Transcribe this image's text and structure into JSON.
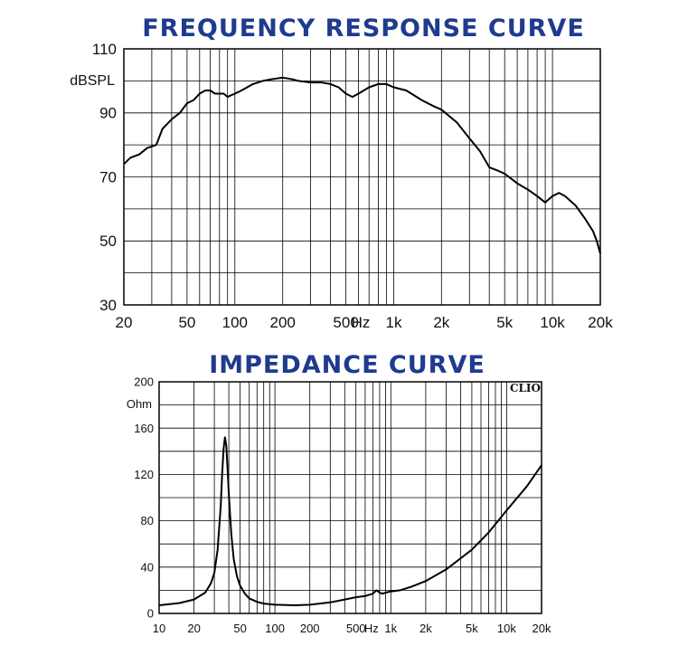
{
  "chart_data": [
    {
      "type": "line",
      "title": "FREQUENCY RESPONSE CURVE",
      "ylabel": "dBSPL",
      "xlabel": "",
      "x_scale": "log",
      "xlim": [
        20,
        20000
      ],
      "ylim": [
        30,
        110
      ],
      "y_ticks": [
        30,
        50,
        70,
        90,
        110
      ],
      "y_gridlines": [
        30,
        40,
        50,
        60,
        70,
        80,
        90,
        100,
        110
      ],
      "x_gridlines": [
        20,
        30,
        40,
        50,
        60,
        70,
        80,
        90,
        100,
        200,
        300,
        400,
        500,
        600,
        700,
        800,
        900,
        1000,
        2000,
        3000,
        4000,
        5000,
        6000,
        7000,
        8000,
        9000,
        10000,
        20000
      ],
      "x_tick_labels": [
        {
          "value": 20,
          "label": "20"
        },
        {
          "value": 50,
          "label": "50"
        },
        {
          "value": 100,
          "label": "100"
        },
        {
          "value": 200,
          "label": "200"
        },
        {
          "value": 500,
          "label": "500"
        },
        {
          "value": 620,
          "label": "Hz"
        },
        {
          "value": 1000,
          "label": "1k"
        },
        {
          "value": 2000,
          "label": "2k"
        },
        {
          "value": 5000,
          "label": "5k"
        },
        {
          "value": 10000,
          "label": "10k"
        },
        {
          "value": 20000,
          "label": "20k"
        }
      ],
      "grid": true,
      "series": [
        {
          "name": "",
          "x": [
            20,
            22,
            25,
            28,
            32,
            35,
            40,
            45,
            50,
            55,
            60,
            65,
            70,
            75,
            80,
            85,
            90,
            100,
            110,
            130,
            150,
            170,
            200,
            230,
            250,
            300,
            350,
            400,
            450,
            500,
            550,
            600,
            700,
            800,
            900,
            1000,
            1200,
            1500,
            1800,
            2000,
            2500,
            3000,
            3500,
            4000,
            4500,
            5000,
            6000,
            7000,
            8000,
            9000,
            10000,
            11000,
            12000,
            14000,
            16000,
            18000,
            19000,
            20000
          ],
          "y": [
            74,
            76,
            77,
            79,
            80,
            85,
            88,
            90,
            93,
            94,
            96,
            97,
            97,
            96,
            96,
            96,
            95,
            96,
            97,
            99,
            100,
            100.5,
            101,
            100.5,
            100,
            99.5,
            99.5,
            99,
            98,
            96,
            95,
            96,
            98,
            99,
            99,
            98,
            97,
            94,
            92,
            91,
            87,
            82,
            78,
            73,
            72,
            71,
            68,
            66,
            64,
            62,
            64,
            65,
            64,
            61,
            57,
            53,
            50,
            46
          ]
        }
      ]
    },
    {
      "type": "line",
      "title": "IMPEDANCE CURVE",
      "ylabel": "Ohm",
      "xlabel": "",
      "x_scale": "log",
      "xlim": [
        10,
        20000
      ],
      "ylim": [
        0,
        200
      ],
      "y_ticks": [
        0,
        40,
        80,
        120,
        160,
        200
      ],
      "y_gridlines": [
        0,
        20,
        40,
        60,
        80,
        100,
        120,
        140,
        160,
        180,
        200
      ],
      "x_gridlines": [
        10,
        20,
        30,
        40,
        50,
        60,
        70,
        80,
        90,
        100,
        200,
        300,
        400,
        500,
        600,
        700,
        800,
        900,
        1000,
        2000,
        3000,
        4000,
        5000,
        6000,
        7000,
        8000,
        9000,
        10000,
        20000
      ],
      "x_tick_labels": [
        {
          "value": 10,
          "label": "10"
        },
        {
          "value": 20,
          "label": "20"
        },
        {
          "value": 50,
          "label": "50"
        },
        {
          "value": 100,
          "label": "100"
        },
        {
          "value": 200,
          "label": "200"
        },
        {
          "value": 500,
          "label": "500"
        },
        {
          "value": 680,
          "label": "Hz"
        },
        {
          "value": 1000,
          "label": "1k"
        },
        {
          "value": 2000,
          "label": "2k"
        },
        {
          "value": 5000,
          "label": "5k"
        },
        {
          "value": 10000,
          "label": "10k"
        },
        {
          "value": 20000,
          "label": "20k"
        }
      ],
      "annotation": "CLIO",
      "grid": true,
      "series": [
        {
          "name": "",
          "x": [
            10,
            15,
            20,
            25,
            28,
            30,
            32,
            34,
            35,
            36,
            37,
            38,
            39,
            40,
            41,
            42,
            44,
            47,
            50,
            55,
            60,
            70,
            80,
            100,
            150,
            200,
            300,
            400,
            500,
            600,
            700,
            750,
            800,
            850,
            900,
            1000,
            1200,
            1500,
            2000,
            3000,
            5000,
            7000,
            10000,
            15000,
            20000
          ],
          "y": [
            7,
            9,
            12,
            18,
            26,
            35,
            55,
            92,
            120,
            142,
            152,
            145,
            125,
            103,
            85,
            68,
            47,
            32,
            24,
            17,
            13,
            10,
            8.5,
            7.5,
            7,
            7.5,
            9.5,
            12,
            14,
            15,
            17,
            20,
            18,
            17,
            18,
            19,
            20,
            23,
            28,
            38,
            55,
            70,
            89,
            110,
            128
          ]
        }
      ]
    }
  ]
}
